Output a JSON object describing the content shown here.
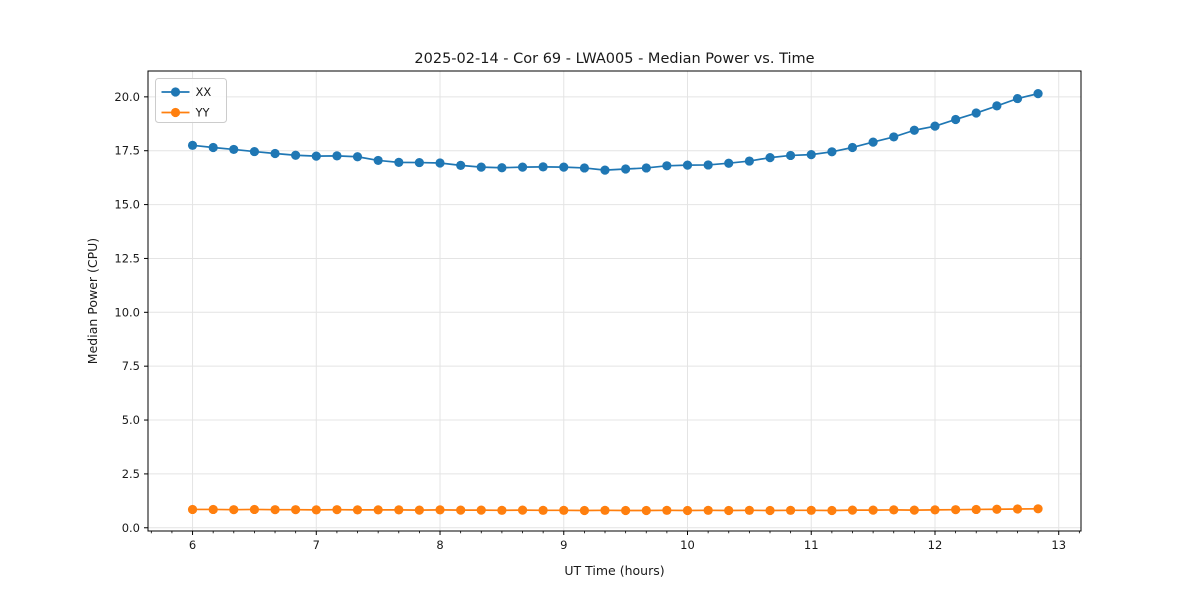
{
  "chart_data": {
    "type": "line",
    "title": "2025-02-14 - Cor 69 - LWA005 - Median Power vs. Time",
    "xlabel": "UT Time (hours)",
    "ylabel": "Median Power (CPU)",
    "xlim": [
      5.64,
      13.18
    ],
    "ylim": [
      -0.15,
      21.2
    ],
    "xticks": [
      6,
      7,
      8,
      9,
      10,
      11,
      12,
      13
    ],
    "xtick_labels": [
      "6",
      "7",
      "8",
      "9",
      "10",
      "11",
      "12",
      "13"
    ],
    "x_minor_step": 0.16667,
    "yticks": [
      0,
      2.5,
      5,
      7.5,
      10,
      12.5,
      15,
      17.5,
      20
    ],
    "ytick_labels": [
      "0.0",
      "2.5",
      "5.0",
      "7.5",
      "10.0",
      "12.5",
      "15.0",
      "17.5",
      "20.0"
    ],
    "grid": true,
    "grid_color": "#e4e4e4",
    "frame_color": "#000000",
    "marker": "circle",
    "legend": {
      "position": "upper-left",
      "entries": [
        "XX",
        "YY"
      ]
    },
    "x": [
      6.0,
      6.167,
      6.333,
      6.5,
      6.667,
      6.833,
      7.0,
      7.167,
      7.333,
      7.5,
      7.667,
      7.833,
      8.0,
      8.167,
      8.333,
      8.5,
      8.667,
      8.833,
      9.0,
      9.167,
      9.333,
      9.5,
      9.667,
      9.833,
      10.0,
      10.167,
      10.333,
      10.5,
      10.667,
      10.833,
      11.0,
      11.167,
      11.333,
      11.5,
      11.667,
      11.833,
      12.0,
      12.167,
      12.333,
      12.5,
      12.667,
      12.833
    ],
    "series": [
      {
        "name": "XX",
        "color": "#1f77b4",
        "values": [
          17.75,
          17.65,
          17.56,
          17.46,
          17.37,
          17.29,
          17.25,
          17.26,
          17.22,
          17.05,
          16.96,
          16.95,
          16.93,
          16.82,
          16.74,
          16.71,
          16.74,
          16.75,
          16.74,
          16.7,
          16.6,
          16.65,
          16.7,
          16.8,
          16.83,
          16.84,
          16.92,
          17.02,
          17.18,
          17.28,
          17.32,
          17.45,
          17.65,
          17.9,
          18.14,
          18.45,
          18.64,
          18.95,
          19.25,
          19.58,
          19.92,
          20.15
        ]
      },
      {
        "name": "YY",
        "color": "#ff7f0e",
        "values": [
          0.85,
          0.85,
          0.84,
          0.85,
          0.84,
          0.84,
          0.83,
          0.84,
          0.83,
          0.83,
          0.83,
          0.82,
          0.83,
          0.82,
          0.82,
          0.81,
          0.82,
          0.81,
          0.81,
          0.8,
          0.81,
          0.8,
          0.8,
          0.81,
          0.8,
          0.81,
          0.8,
          0.81,
          0.8,
          0.81,
          0.81,
          0.8,
          0.82,
          0.82,
          0.83,
          0.82,
          0.83,
          0.84,
          0.85,
          0.86,
          0.87,
          0.88
        ]
      }
    ]
  }
}
